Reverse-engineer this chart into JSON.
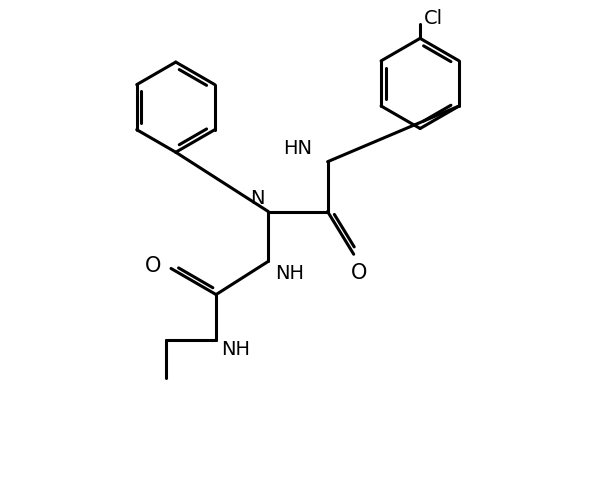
{
  "background_color": "#ffffff",
  "line_color": "#000000",
  "line_width": 2.2,
  "font_size": 14,
  "figsize": [
    6.03,
    4.8
  ],
  "dpi": 100,
  "xlim": [
    0,
    10
  ],
  "ylim": [
    0,
    10
  ]
}
